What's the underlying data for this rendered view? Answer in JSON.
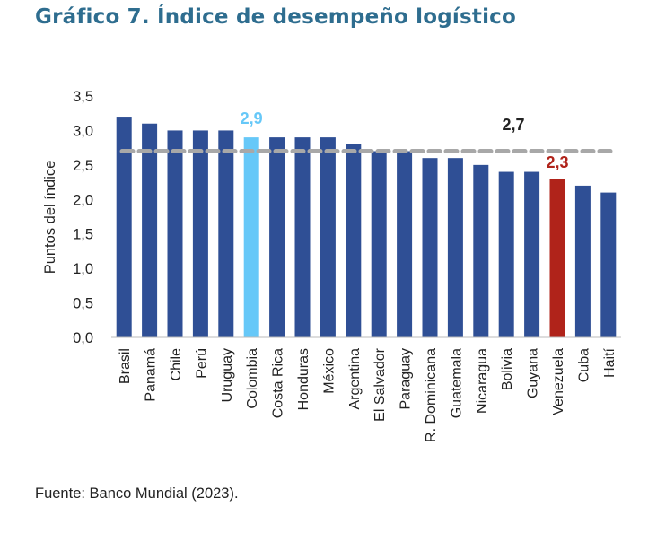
{
  "chart_data": {
    "type": "bar",
    "title": "Gráfico 7. Índice de desempeño logístico",
    "ylabel": "Puntos del índice",
    "xlabel": "",
    "ylim": [
      0,
      3.5
    ],
    "yticks": [
      "0,0",
      "0,5",
      "1,0",
      "1,5",
      "2,0",
      "2,5",
      "3,0",
      "3,5"
    ],
    "categories": [
      "Brasil",
      "Panamá",
      "Chile",
      "Perú",
      "Uruguay",
      "Colombia",
      "Costa Rica",
      "Honduras",
      "México",
      "Argentina",
      "El Salvador",
      "Paraguay",
      "R. Dominicana",
      "Guatemala",
      "Nicaragua",
      "Bolivia",
      "Guyana",
      "Venezuela",
      "Cuba",
      "Haití"
    ],
    "values": [
      3.2,
      3.1,
      3.0,
      3.0,
      3.0,
      2.9,
      2.9,
      2.9,
      2.9,
      2.8,
      2.7,
      2.7,
      2.6,
      2.6,
      2.5,
      2.4,
      2.4,
      2.3,
      2.2,
      2.1
    ],
    "reference_line": {
      "value": 2.7,
      "label": "2,7",
      "style": "dashed",
      "color": "#A8A8A8"
    },
    "highlights": [
      {
        "category": "Colombia",
        "label": "2,9",
        "color": "#66C8F8"
      },
      {
        "category": "Venezuela",
        "label": "2,3",
        "color": "#B0231A"
      }
    ],
    "bar_color": "#2F4F95",
    "grid": false,
    "legend": "none"
  },
  "source": "Fuente: Banco Mundial (2023)."
}
